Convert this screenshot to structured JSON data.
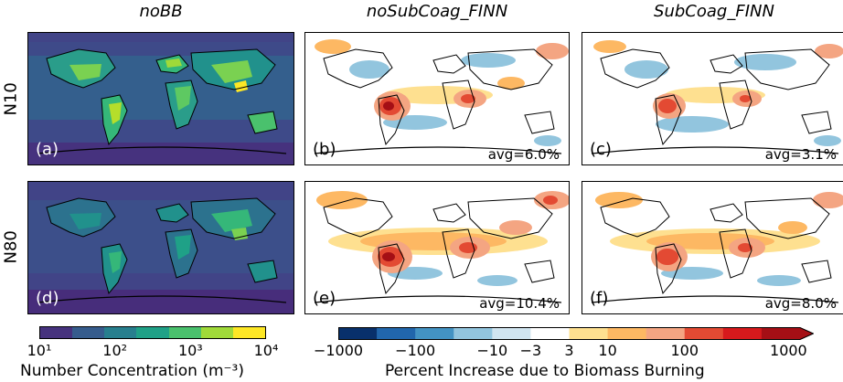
{
  "columns": [
    {
      "title": "noBB"
    },
    {
      "title": "noSubCoag_FINN"
    },
    {
      "title": "SubCoag_FINN"
    }
  ],
  "rows": [
    {
      "label": "N10"
    },
    {
      "label": "N80"
    }
  ],
  "panels": [
    {
      "label": "(a)",
      "avg": ""
    },
    {
      "label": "(b)",
      "avg": "avg=6.0%"
    },
    {
      "label": "(c)",
      "avg": "avg=3.1%"
    },
    {
      "label": "(d)",
      "avg": ""
    },
    {
      "label": "(e)",
      "avg": "avg=10.4%"
    },
    {
      "label": "(f)",
      "avg": "avg=8.0%"
    }
  ],
  "colorbar_left": {
    "title": "Number Concentration (m⁻³)",
    "ticks": [
      "10¹",
      "10²",
      "10³",
      "10⁴"
    ],
    "colors": [
      "#46327e",
      "#365c8d",
      "#277f8e",
      "#1fa187",
      "#4ac16d",
      "#a0da39",
      "#fde725"
    ]
  },
  "colorbar_right": {
    "title": "Percent Increase due to Biomass Burning",
    "ticks": [
      "−1000",
      "−100",
      "−10",
      "−3",
      "3",
      "10",
      "100",
      "1000"
    ],
    "colors": [
      "#08306b",
      "#2166ac",
      "#4393c3",
      "#92c5de",
      "#d1e5f0",
      "#ffffff",
      "#fee090",
      "#fdb863",
      "#f4a582",
      "#e34a33",
      "#d7191c",
      "#a50f15"
    ]
  }
}
